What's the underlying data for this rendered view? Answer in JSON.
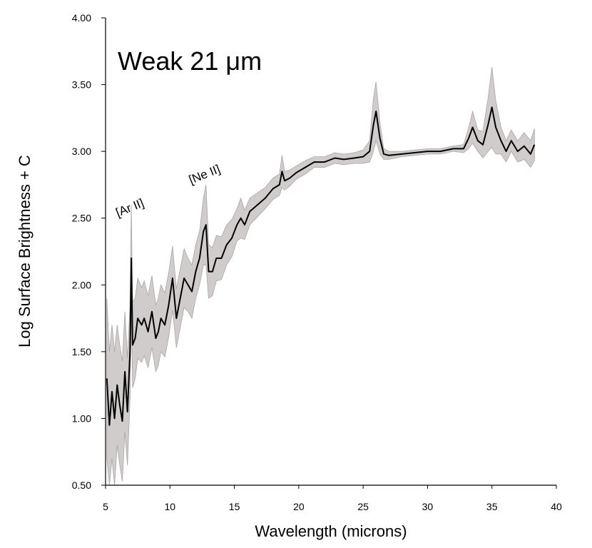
{
  "chart_data": {
    "type": "line",
    "title": "Weak 21 μm",
    "xlabel": "Wavelength (microns)",
    "ylabel": "Log Surface Brightness + C",
    "xlim": [
      5,
      40
    ],
    "ylim": [
      0.5,
      4.0
    ],
    "x_ticks": [
      "5",
      "10",
      "15",
      "20",
      "25",
      "30",
      "35",
      "40"
    ],
    "y_ticks": [
      "0.50",
      "1.00",
      "1.50",
      "2.00",
      "2.50",
      "3.00",
      "3.50",
      "4.00"
    ],
    "grid": false,
    "legend": "none",
    "line_color": "#000000",
    "band_color": "#d0cccc",
    "annotations": [
      {
        "text": "[Ar II]",
        "x": 7.0,
        "y": 2.55
      },
      {
        "text": "[Ne II]",
        "x": 12.8,
        "y": 2.8
      }
    ],
    "series": [
      {
        "x": [
          5.1,
          5.3,
          5.5,
          5.7,
          5.9,
          6.1,
          6.3,
          6.5,
          6.7,
          6.9,
          7.0,
          7.1,
          7.3,
          7.5,
          7.8,
          8.0,
          8.3,
          8.6,
          8.9,
          9.1,
          9.3,
          9.6,
          9.9,
          10.2,
          10.5,
          10.8,
          11.1,
          11.4,
          11.7,
          12.0,
          12.3,
          12.6,
          12.8,
          13.0,
          13.3,
          13.6,
          14.0,
          14.4,
          14.8,
          15.2,
          15.5,
          15.8,
          16.2,
          16.8,
          17.4,
          18.0,
          18.5,
          18.7,
          18.9,
          19.3,
          19.8,
          20.5,
          21.2,
          22.0,
          22.8,
          23.5,
          24.3,
          25.0,
          25.5,
          25.8,
          26.0,
          26.3,
          26.6,
          27.0,
          28.0,
          29.0,
          30.0,
          31.0,
          32.0,
          32.8,
          33.2,
          33.5,
          33.9,
          34.3,
          34.7,
          35.0,
          35.3,
          35.7,
          36.1,
          36.5,
          37.0,
          37.5,
          38.0,
          38.3
        ],
        "y": [
          1.3,
          0.95,
          1.2,
          1.0,
          1.25,
          1.1,
          0.98,
          1.35,
          1.05,
          1.5,
          2.2,
          1.55,
          1.6,
          1.75,
          1.7,
          1.75,
          1.65,
          1.8,
          1.6,
          1.65,
          1.75,
          1.7,
          1.85,
          2.05,
          1.75,
          1.9,
          2.05,
          2.0,
          1.95,
          2.1,
          2.2,
          2.4,
          2.45,
          2.1,
          2.1,
          2.2,
          2.2,
          2.3,
          2.35,
          2.45,
          2.5,
          2.45,
          2.55,
          2.6,
          2.65,
          2.72,
          2.75,
          2.85,
          2.78,
          2.8,
          2.84,
          2.88,
          2.92,
          2.92,
          2.95,
          2.94,
          2.95,
          2.96,
          3.0,
          3.2,
          3.3,
          3.1,
          2.98,
          2.97,
          2.98,
          2.99,
          3.0,
          3.0,
          3.02,
          3.02,
          3.1,
          3.18,
          3.08,
          3.05,
          3.2,
          3.33,
          3.18,
          3.08,
          3.0,
          3.08,
          3.0,
          3.04,
          2.98,
          3.05
        ],
        "spread": [
          0.6,
          0.55,
          0.5,
          0.5,
          0.45,
          0.45,
          0.45,
          0.45,
          0.4,
          0.35,
          0.4,
          0.32,
          0.3,
          0.3,
          0.28,
          0.28,
          0.27,
          0.27,
          0.25,
          0.25,
          0.25,
          0.24,
          0.24,
          0.24,
          0.22,
          0.22,
          0.22,
          0.2,
          0.2,
          0.2,
          0.2,
          0.25,
          0.3,
          0.2,
          0.18,
          0.17,
          0.16,
          0.15,
          0.14,
          0.12,
          0.15,
          0.11,
          0.1,
          0.09,
          0.08,
          0.08,
          0.08,
          0.12,
          0.07,
          0.06,
          0.05,
          0.05,
          0.04,
          0.04,
          0.04,
          0.04,
          0.04,
          0.05,
          0.08,
          0.2,
          0.22,
          0.12,
          0.04,
          0.03,
          0.02,
          0.02,
          0.02,
          0.02,
          0.02,
          0.03,
          0.08,
          0.12,
          0.08,
          0.1,
          0.2,
          0.3,
          0.2,
          0.1,
          0.08,
          0.08,
          0.08,
          0.1,
          0.1,
          0.12
        ]
      }
    ]
  }
}
